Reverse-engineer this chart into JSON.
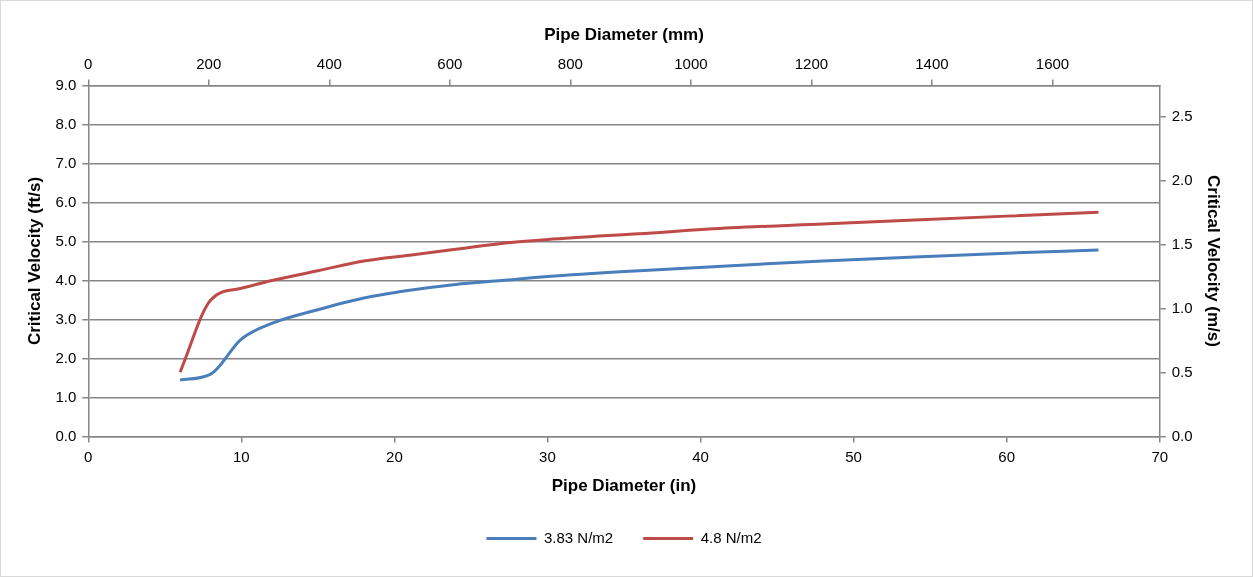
{
  "chart_data": {
    "type": "line",
    "xlabel": "Pipe Diameter (in)",
    "ylabel": "Critical Velocity (ft/s)",
    "y2label": "Critical Velocity (m/s)",
    "x2label": "Pipe Diameter (mm)",
    "x": [
      6,
      8,
      10,
      12,
      15,
      18,
      21,
      24,
      27,
      30,
      36,
      42,
      48,
      54,
      60,
      66
    ],
    "series": [
      {
        "name": "3.83 N/m2",
        "color": "#4a7ebb",
        "values": [
          1.45,
          1.6,
          2.5,
          2.9,
          3.25,
          3.55,
          3.75,
          3.9,
          4.0,
          4.1,
          4.25,
          4.38,
          4.5,
          4.6,
          4.7,
          4.78
        ]
      },
      {
        "name": "4.8 N/m2",
        "color": "#be4b48",
        "values": [
          1.65,
          3.5,
          3.8,
          4.0,
          4.25,
          4.5,
          4.65,
          4.8,
          4.95,
          5.05,
          5.2,
          5.35,
          5.45,
          5.55,
          5.65,
          5.75
        ]
      }
    ],
    "xlim": [
      0,
      70
    ],
    "xticks": [
      0,
      10,
      20,
      30,
      40,
      50,
      60,
      70
    ],
    "x2lim": [
      0,
      1778
    ],
    "x2ticks": [
      0,
      200,
      400,
      600,
      800,
      1000,
      1200,
      1400,
      1600
    ],
    "ylim": [
      0,
      9
    ],
    "yticks": [
      {
        "value": 0,
        "label": "0.0"
      },
      {
        "value": 1,
        "label": "1.0"
      },
      {
        "value": 2,
        "label": "2.0"
      },
      {
        "value": 3,
        "label": "3.0"
      },
      {
        "value": 4,
        "label": "4.0"
      },
      {
        "value": 5,
        "label": "5.0"
      },
      {
        "value": 6,
        "label": "6.0"
      },
      {
        "value": 7,
        "label": "7.0"
      },
      {
        "value": 8,
        "label": "8.0"
      },
      {
        "value": 9,
        "label": "9.0"
      }
    ],
    "y2lim": [
      0,
      2.7432
    ],
    "y2ticks": [
      {
        "value": 0,
        "label": "0.0"
      },
      {
        "value": 0.5,
        "label": "0.5"
      },
      {
        "value": 1,
        "label": "1.0"
      },
      {
        "value": 1.5,
        "label": "1.5"
      },
      {
        "value": 2,
        "label": "2.0"
      },
      {
        "value": 2.5,
        "label": "2.5"
      }
    ],
    "grid": "y",
    "legend": "bottom",
    "marker": "none",
    "line_style": "solid"
  }
}
